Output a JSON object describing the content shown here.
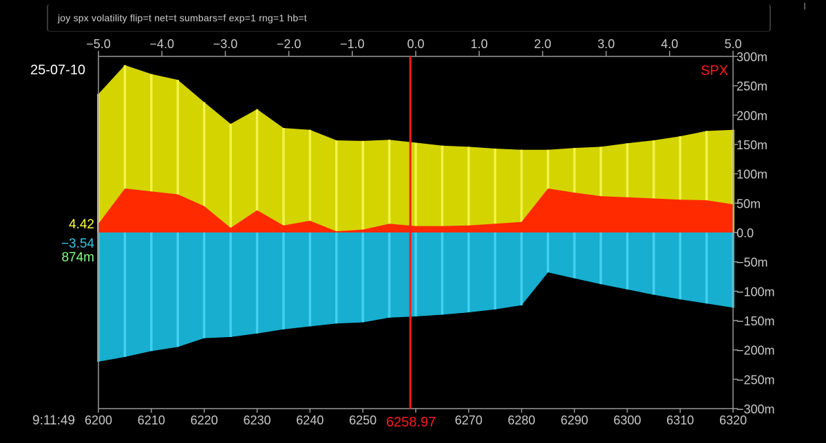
{
  "command": {
    "text": "joy spx volatility flip=t net=t sumbars=f exp=1 rng=1 hb=t"
  },
  "labels": {
    "date": "25-07-10",
    "symbol": "SPX",
    "time": "9:11:49",
    "positive_value": "4.42",
    "negative_value": "−3.54",
    "net_value": "874m",
    "price_marker": "6258.97"
  },
  "colors": {
    "positive_fill": "#d4d400",
    "positive_bar": "#f2f24a",
    "net_fill": "#ff2a00",
    "negative_fill": "#17aed0",
    "negative_bar": "#42d0ee",
    "price_line": "#ff1a1a",
    "axis": "#9a9a9a",
    "date_text": "#ffffff",
    "symbol_text": "#ff1a1a",
    "positive_text": "#ffff40",
    "negative_text": "#38c8ec",
    "net_text": "#80ff80"
  },
  "chart_data": {
    "type": "area",
    "x_axis_top": {
      "ticks": [
        "−5.0",
        "−4.0",
        "−3.0",
        "−2.0",
        "−1.0",
        "0.0",
        "1.0",
        "2.0",
        "3.0",
        "4.0",
        "5.0"
      ],
      "range": [
        -5.0,
        5.0
      ]
    },
    "x_axis_bottom": {
      "ticks": [
        "6200",
        "6210",
        "6220",
        "6230",
        "6240",
        "6250",
        "6260",
        "6270",
        "6280",
        "6290",
        "6300",
        "6310",
        "6320"
      ],
      "range": [
        6200,
        6320
      ]
    },
    "y_axis": {
      "ticks": [
        "300m",
        "250m",
        "200m",
        "150m",
        "100m",
        "50m",
        "0.0",
        "−50m",
        "−100m",
        "−150m",
        "−200m",
        "−250m",
        "−300m"
      ],
      "range": [
        -300,
        300
      ],
      "unit": "m"
    },
    "current_price": 6258.97,
    "strikes": [
      6200,
      6205,
      6210,
      6215,
      6220,
      6225,
      6230,
      6235,
      6240,
      6245,
      6250,
      6255,
      6260,
      6265,
      6270,
      6275,
      6280,
      6285,
      6290,
      6295,
      6300,
      6305,
      6310,
      6315,
      6320
    ],
    "series": [
      {
        "role": "positive",
        "values": [
          236,
          285,
          270,
          260,
          222,
          185,
          210,
          178,
          175,
          157,
          156,
          158,
          153,
          148,
          146,
          143,
          141,
          141,
          144,
          146,
          152,
          157,
          164,
          173,
          175
        ]
      },
      {
        "role": "net",
        "values": [
          15,
          75,
          70,
          65,
          45,
          8,
          38,
          12,
          20,
          2,
          5,
          15,
          11,
          11,
          12,
          15,
          18,
          75,
          68,
          62,
          60,
          58,
          56,
          55,
          48
        ]
      },
      {
        "role": "negative",
        "values": [
          -220,
          -212,
          -202,
          -195,
          -180,
          -178,
          -172,
          -165,
          -160,
          -155,
          -153,
          -145,
          -143,
          -140,
          -136,
          -131,
          -124,
          -68,
          -78,
          -88,
          -97,
          -106,
          -114,
          -121,
          -128
        ]
      }
    ]
  }
}
